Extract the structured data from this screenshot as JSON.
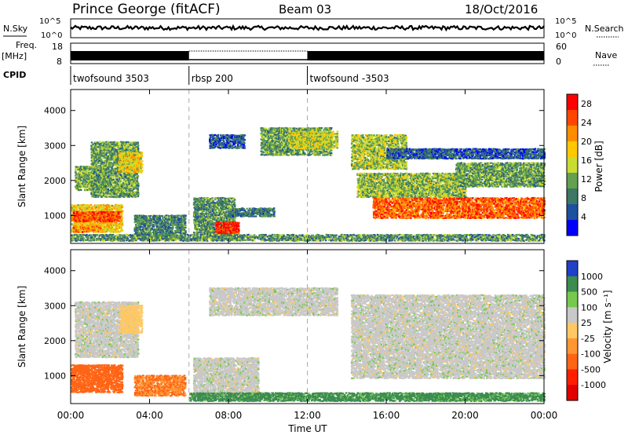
{
  "header": {
    "station": "Prince George (fitACF)",
    "beam": "Beam 03",
    "date": "18/Oct/2016"
  },
  "top_panels": {
    "nsky_label": "N.Sky",
    "nsky_ticks": [
      "10^5",
      "10^0"
    ],
    "nsearch_label": "N.Search",
    "nsearch_ticks": [
      "10^5",
      "10^0"
    ],
    "freq_label": "Freq.",
    "freq_unit": "[MHz]",
    "freq_ticks": [
      "18",
      "8"
    ],
    "nave_label": "Nave",
    "nave_ticks": [
      "60",
      "0"
    ],
    "cpid_label": "CPID",
    "cpid_segments": [
      {
        "label": "twofsound 3503",
        "start_h": 0,
        "end_h": 6
      },
      {
        "label": "rbsp 200",
        "start_h": 6,
        "end_h": 12
      },
      {
        "label": "twofsound -3503",
        "start_h": 12,
        "end_h": 24
      }
    ]
  },
  "time_axis": {
    "label": "Time UT",
    "ticks": [
      "00:00",
      "04:00",
      "08:00",
      "12:00",
      "16:00",
      "20:00",
      "00:00"
    ]
  },
  "colors": {
    "power": [
      "#0000ff",
      "#1e50a0",
      "#3c7864",
      "#64a050",
      "#c8dc32",
      "#ffc800",
      "#ff8c00",
      "#ff4600",
      "#ff0000"
    ],
    "velocity": [
      "#2040c8",
      "#3c8c50",
      "#78c850",
      "#c8c8c8",
      "#ffc864",
      "#ff9632",
      "#ff6414",
      "#ff1e00",
      "#e00000"
    ]
  },
  "chart_data": [
    {
      "type": "heatmap",
      "name": "power",
      "ylabel": "Slant Range [km]",
      "yticks": [
        "1000",
        "2000",
        "3000",
        "4000"
      ],
      "ylim": [
        200,
        4600
      ],
      "colorbar_label": "Power [dB]",
      "colorbar_ticks": [
        "4",
        "8",
        "12",
        "16",
        "20",
        "24",
        "28"
      ],
      "clim": [
        0,
        30
      ],
      "xlim": [
        0,
        24
      ],
      "blobs": [
        {
          "t0": 0.0,
          "t1": 2.6,
          "r0": 500,
          "r1": 1300,
          "level": 18
        },
        {
          "t0": 0.2,
          "t1": 1.8,
          "r0": 1700,
          "r1": 2400,
          "level": 12
        },
        {
          "t0": 1.0,
          "t1": 3.4,
          "r0": 1500,
          "r1": 3100,
          "level": 11
        },
        {
          "t0": 2.4,
          "t1": 3.6,
          "r0": 2200,
          "r1": 2800,
          "level": 17
        },
        {
          "t0": 0.1,
          "t1": 2.5,
          "r0": 800,
          "r1": 1100,
          "level": 25
        },
        {
          "t0": 0.1,
          "t1": 1.5,
          "r0": 500,
          "r1": 700,
          "level": 22
        },
        {
          "t0": 3.2,
          "t1": 5.8,
          "r0": 300,
          "r1": 1000,
          "level": 9
        },
        {
          "t0": 6.2,
          "t1": 8.3,
          "r0": 350,
          "r1": 1500,
          "level": 10
        },
        {
          "t0": 7.3,
          "t1": 8.5,
          "r0": 450,
          "r1": 800,
          "level": 27
        },
        {
          "t0": 8.0,
          "t1": 10.3,
          "r0": 950,
          "r1": 1200,
          "level": 8
        },
        {
          "t0": 7.0,
          "t1": 8.8,
          "r0": 2900,
          "r1": 3300,
          "level": 6
        },
        {
          "t0": 9.6,
          "t1": 13.2,
          "r0": 2700,
          "r1": 3500,
          "level": 11
        },
        {
          "t0": 11.0,
          "t1": 13.5,
          "r0": 2900,
          "r1": 3400,
          "level": 15
        },
        {
          "t0": 14.2,
          "t1": 17.0,
          "r0": 2300,
          "r1": 3300,
          "level": 14
        },
        {
          "t0": 15.3,
          "t1": 24.0,
          "r0": 900,
          "r1": 1500,
          "level": 24
        },
        {
          "t0": 14.5,
          "t1": 20.0,
          "r0": 1500,
          "r1": 2200,
          "level": 13
        },
        {
          "t0": 19.5,
          "t1": 24.0,
          "r0": 1800,
          "r1": 2500,
          "level": 11
        },
        {
          "t0": 16.0,
          "t1": 24.0,
          "r0": 2600,
          "r1": 2900,
          "level": 6
        },
        {
          "t0": 0.0,
          "t1": 24.0,
          "r0": 250,
          "r1": 450,
          "level": 10
        }
      ]
    },
    {
      "type": "heatmap",
      "name": "velocity",
      "ylabel": "Slant Range [km]",
      "yticks": [
        "1000",
        "2000",
        "3000",
        "4000"
      ],
      "ylim": [
        200,
        4600
      ],
      "colorbar_label": "Velocity [m s⁻¹]",
      "colorbar_ticks": [
        "1000",
        "500",
        "100",
        "25",
        "-25",
        "-100",
        "-500",
        "-1000"
      ],
      "xlim": [
        0,
        24
      ],
      "blobs": [
        {
          "t0": 0.0,
          "t1": 2.6,
          "r0": 500,
          "r1": 1300,
          "vel": -300
        },
        {
          "t0": 0.2,
          "t1": 3.4,
          "r0": 1500,
          "r1": 3100,
          "vel": 0
        },
        {
          "t0": 2.5,
          "t1": 3.6,
          "r0": 2200,
          "r1": 3000,
          "vel": -60
        },
        {
          "t0": 3.2,
          "t1": 5.8,
          "r0": 400,
          "r1": 1000,
          "vel": -250
        },
        {
          "t0": 6.2,
          "t1": 9.5,
          "r0": 350,
          "r1": 1500,
          "vel": 0
        },
        {
          "t0": 7.0,
          "t1": 13.5,
          "r0": 2700,
          "r1": 3500,
          "vel": 0
        },
        {
          "t0": 14.2,
          "t1": 24.0,
          "r0": 900,
          "r1": 3300,
          "vel": 0
        },
        {
          "t0": 6.0,
          "t1": 24.0,
          "r0": 250,
          "r1": 500,
          "vel": 120
        }
      ]
    }
  ]
}
